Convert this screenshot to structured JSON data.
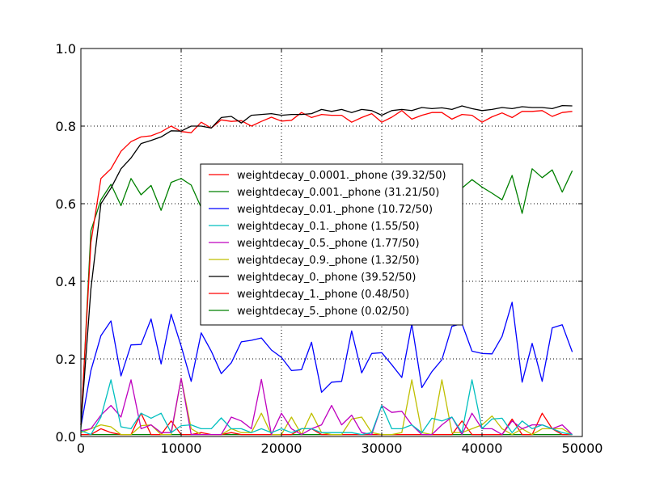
{
  "chart_data": {
    "type": "line",
    "title": "",
    "xlabel": "",
    "ylabel": "",
    "xlim": [
      0,
      50000
    ],
    "ylim": [
      0,
      1.0
    ],
    "x_ticks": [
      "0",
      "10000",
      "20000",
      "30000",
      "40000",
      "50000"
    ],
    "y_ticks": [
      "0.0",
      "0.2",
      "0.4",
      "0.6",
      "0.8",
      "1.0"
    ],
    "grid": true,
    "legend_position": "center",
    "x": [
      0,
      1000,
      2000,
      3000,
      4000,
      5000,
      6000,
      7000,
      8000,
      9000,
      10000,
      11000,
      12000,
      13000,
      14000,
      15000,
      16000,
      17000,
      18000,
      19000,
      20000,
      21000,
      22000,
      23000,
      24000,
      25000,
      26000,
      27000,
      28000,
      29000,
      30000,
      31000,
      32000,
      33000,
      34000,
      35000,
      36000,
      37000,
      38000,
      39000,
      40000,
      41000,
      42000,
      43000,
      44000,
      45000,
      46000,
      47000,
      48000,
      49000
    ],
    "series": [
      {
        "name": "weightdecay_0.0001._phone (39.32/50)",
        "color": "#ff0000",
        "values": [
          0.03,
          0.5,
          0.665,
          0.69,
          0.735,
          0.76,
          0.772,
          0.775,
          0.785,
          0.8,
          0.786,
          0.783,
          0.81,
          0.795,
          0.816,
          0.812,
          0.814,
          0.8,
          0.812,
          0.823,
          0.813,
          0.815,
          0.835,
          0.822,
          0.83,
          0.828,
          0.828,
          0.81,
          0.822,
          0.832,
          0.81,
          0.823,
          0.84,
          0.818,
          0.828,
          0.835,
          0.835,
          0.818,
          0.83,
          0.828,
          0.81,
          0.824,
          0.834,
          0.822,
          0.838,
          0.838,
          0.84,
          0.825,
          0.835,
          0.838
        ]
      },
      {
        "name": "weightdecay_0.001._phone (31.21/50)",
        "color": "#008000",
        "values": [
          0.02,
          0.53,
          0.61,
          0.65,
          0.595,
          0.665,
          0.623,
          0.647,
          0.583,
          0.655,
          0.665,
          0.648,
          0.59,
          0.6,
          0.61,
          0.62,
          0.6,
          0.61,
          0.605,
          0.6,
          0.61,
          0.6,
          0.61,
          0.605,
          0.6,
          0.61,
          0.62,
          0.605,
          0.61,
          0.6,
          0.62,
          0.61,
          0.615,
          0.62,
          0.62,
          0.64,
          0.627,
          0.633,
          0.64,
          0.662,
          0.643,
          0.627,
          0.61,
          0.673,
          0.575,
          0.69,
          0.667,
          0.687,
          0.63,
          0.685
        ]
      },
      {
        "name": "weightdecay_0.01._phone (10.72/50)",
        "color": "#0000ff",
        "values": [
          0.025,
          0.17,
          0.26,
          0.298,
          0.156,
          0.236,
          0.237,
          0.303,
          0.187,
          0.315,
          0.233,
          0.142,
          0.267,
          0.22,
          0.162,
          0.19,
          0.244,
          0.248,
          0.254,
          0.223,
          0.204,
          0.17,
          0.172,
          0.243,
          0.114,
          0.14,
          0.142,
          0.272,
          0.164,
          0.214,
          0.216,
          0.185,
          0.152,
          0.29,
          0.126,
          0.167,
          0.198,
          0.284,
          0.291,
          0.22,
          0.214,
          0.213,
          0.258,
          0.346,
          0.14,
          0.24,
          0.142,
          0.28,
          0.288,
          0.218
        ]
      },
      {
        "name": "weightdecay_0.1._phone (1.55/50)",
        "color": "#00bfbf",
        "values": [
          0.015,
          0.005,
          0.05,
          0.146,
          0.025,
          0.02,
          0.06,
          0.047,
          0.06,
          0.01,
          0.028,
          0.03,
          0.02,
          0.02,
          0.048,
          0.02,
          0.02,
          0.01,
          0.02,
          0.01,
          0.02,
          0.01,
          0.02,
          0.02,
          0.01,
          0.01,
          0.01,
          0.01,
          0.005,
          0.01,
          0.08,
          0.02,
          0.02,
          0.03,
          0.01,
          0.047,
          0.04,
          0.05,
          0.01,
          0.146,
          0.02,
          0.045,
          0.047,
          0.01,
          0.04,
          0.02,
          0.03,
          0.02,
          0.01,
          0.005
        ]
      },
      {
        "name": "weightdecay_0.5._phone (1.77/50)",
        "color": "#bf00bf",
        "values": [
          0.015,
          0.02,
          0.055,
          0.08,
          0.05,
          0.146,
          0.02,
          0.03,
          0.01,
          0.01,
          0.15,
          0.005,
          0.005,
          0.005,
          0.005,
          0.05,
          0.04,
          0.02,
          0.147,
          0.005,
          0.06,
          0.02,
          0.005,
          0.02,
          0.03,
          0.08,
          0.03,
          0.055,
          0.01,
          0.005,
          0.08,
          0.062,
          0.065,
          0.03,
          0.005,
          0.005,
          0.03,
          0.05,
          0.005,
          0.06,
          0.02,
          0.02,
          0.005,
          0.04,
          0.02,
          0.03,
          0.03,
          0.02,
          0.03,
          0.005
        ]
      },
      {
        "name": "weightdecay_0.9._phone (1.32/50)",
        "color": "#bfbf00",
        "values": [
          0.01,
          0.02,
          0.03,
          0.025,
          0.005,
          0.005,
          0.028,
          0.03,
          0.005,
          0.005,
          0.15,
          0.02,
          0.005,
          0.005,
          0.005,
          0.02,
          0.01,
          0.01,
          0.06,
          0.005,
          0.005,
          0.05,
          0.005,
          0.06,
          0.01,
          0.005,
          0.005,
          0.045,
          0.05,
          0.01,
          0.005,
          0.005,
          0.01,
          0.146,
          0.01,
          0.005,
          0.146,
          0.01,
          0.01,
          0.02,
          0.03,
          0.053,
          0.02,
          0.005,
          0.02,
          0.005,
          0.02,
          0.02,
          0.02,
          0.005
        ]
      },
      {
        "name": "weightdecay_0._phone (39.52/50)",
        "color": "#000000",
        "values": [
          0.03,
          0.38,
          0.6,
          0.64,
          0.69,
          0.718,
          0.755,
          0.763,
          0.772,
          0.788,
          0.787,
          0.8,
          0.8,
          0.795,
          0.822,
          0.825,
          0.808,
          0.828,
          0.83,
          0.832,
          0.828,
          0.83,
          0.83,
          0.832,
          0.843,
          0.838,
          0.843,
          0.835,
          0.843,
          0.84,
          0.828,
          0.84,
          0.843,
          0.84,
          0.848,
          0.845,
          0.847,
          0.843,
          0.852,
          0.845,
          0.84,
          0.843,
          0.848,
          0.845,
          0.85,
          0.848,
          0.848,
          0.845,
          0.853,
          0.852
        ]
      },
      {
        "name": "weightdecay_1._phone (0.48/50)",
        "color": "#ff0000",
        "values": [
          0.005,
          0.005,
          0.02,
          0.01,
          0.005,
          0.005,
          0.06,
          0.005,
          0.005,
          0.04,
          0.005,
          0.005,
          0.01,
          0.005,
          0.005,
          0.01,
          0.005,
          0.005,
          0.005,
          0.005,
          0.005,
          0.005,
          0.02,
          0.02,
          0.005,
          0.005,
          0.005,
          0.005,
          0.005,
          0.005,
          0.005,
          0.005,
          0.005,
          0.005,
          0.005,
          0.005,
          0.005,
          0.005,
          0.04,
          0.005,
          0.005,
          0.005,
          0.005,
          0.045,
          0.005,
          0.005,
          0.06,
          0.02,
          0.005,
          0.005
        ]
      },
      {
        "name": "weightdecay_5._phone (0.02/50)",
        "color": "#008000",
        "values": [
          0.005,
          0.005,
          0.005,
          0.005,
          0.005,
          0.005,
          0.005,
          0.005,
          0.005,
          0.005,
          0.005,
          0.005,
          0.005,
          0.005,
          0.005,
          0.005,
          0.005,
          0.005,
          0.005,
          0.005,
          0.005,
          0.005,
          0.005,
          0.005,
          0.005,
          0.005,
          0.005,
          0.005,
          0.005,
          0.005,
          0.005,
          0.005,
          0.005,
          0.005,
          0.005,
          0.005,
          0.005,
          0.005,
          0.005,
          0.005,
          0.005,
          0.005,
          0.005,
          0.005,
          0.005,
          0.005,
          0.005,
          0.005,
          0.005,
          0.005
        ]
      }
    ]
  }
}
